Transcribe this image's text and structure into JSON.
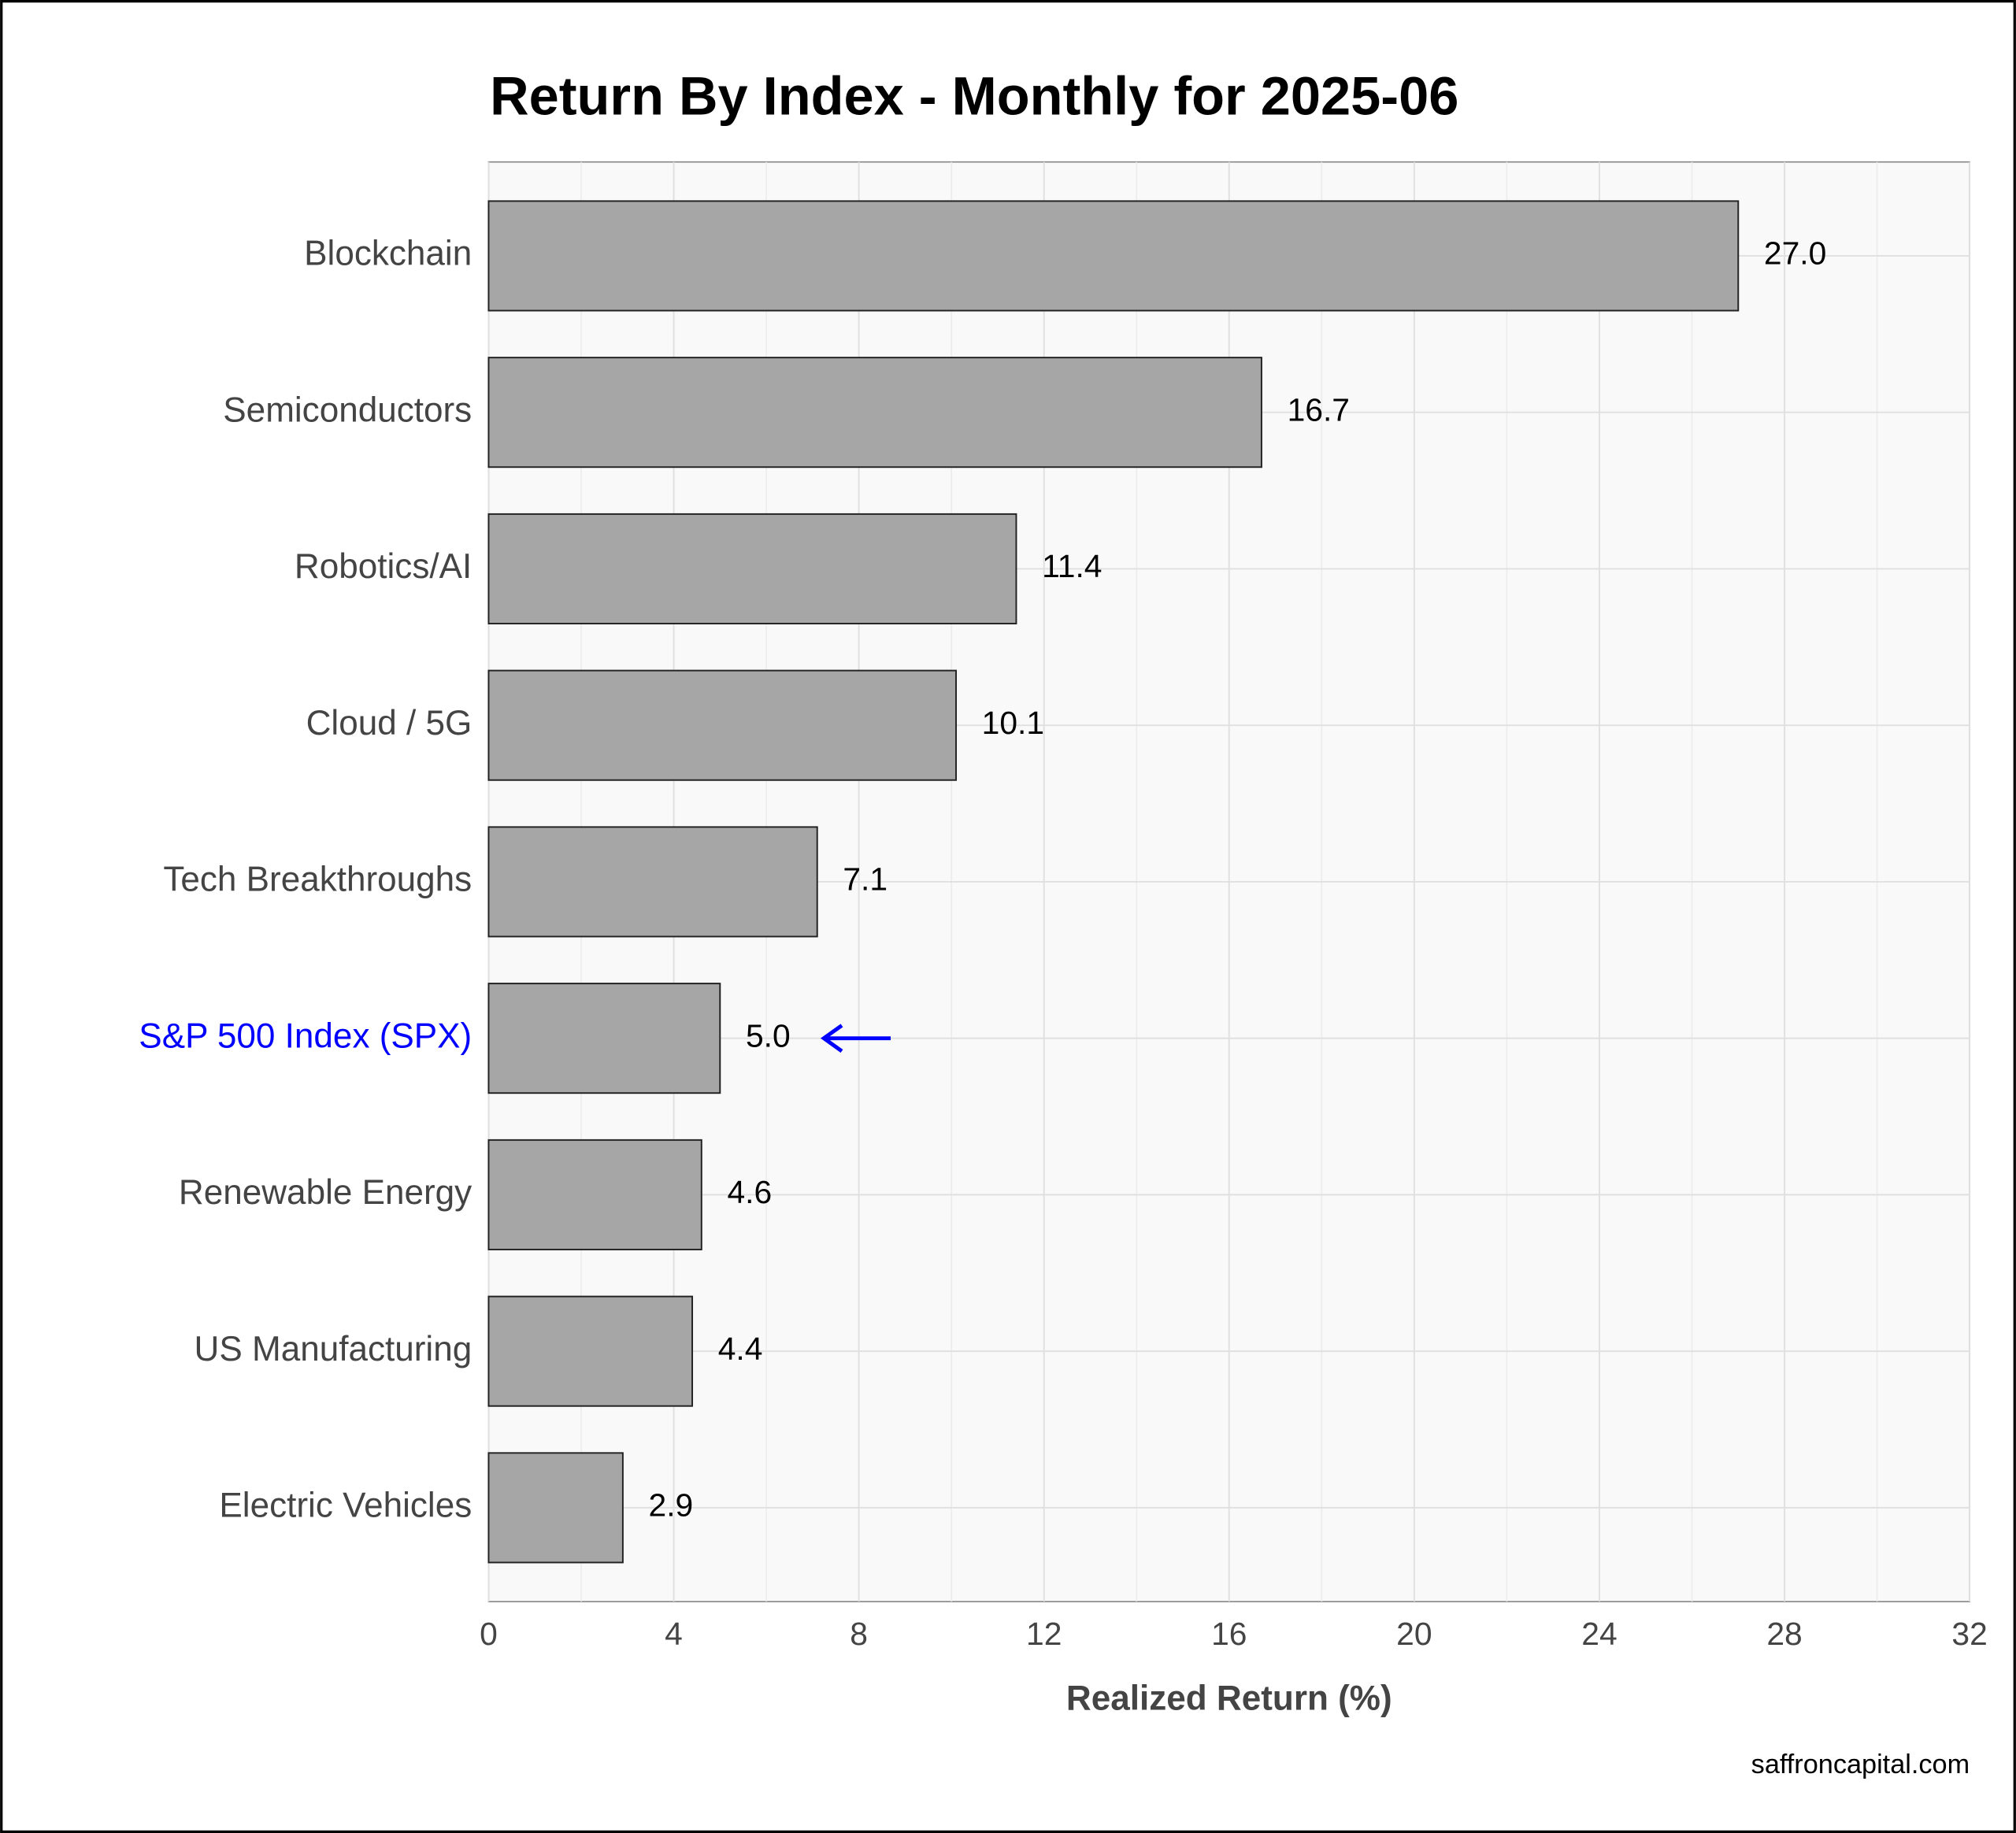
{
  "chart_data": {
    "type": "bar",
    "orientation": "horizontal",
    "title": "Return By Index - Monthly for 2025-06",
    "categories": [
      "Blockchain",
      "Semiconductors",
      "Robotics/AI",
      "Cloud / 5G",
      "Tech Breakthroughs",
      "S&P 500 Index (SPX)",
      "Renewable Energy",
      "US Manufacturing",
      "Electric Vehicles"
    ],
    "values": [
      27.0,
      16.7,
      11.4,
      10.1,
      7.1,
      5.0,
      4.6,
      4.4,
      2.9
    ],
    "value_labels": [
      "27.0",
      "16.7",
      "11.4",
      "10.1",
      "7.1",
      "5.0",
      "4.6",
      "4.4",
      "2.9"
    ],
    "color": "#a6a6a6",
    "highlight_category": "S&P 500 Index (SPX)",
    "highlight_color": "#0000ff",
    "xlabel": "Realized Return (%)",
    "xlim": [
      0,
      32
    ],
    "xticks": [
      0,
      4,
      8,
      12,
      16,
      20,
      24,
      28,
      32
    ],
    "grid": true,
    "caption": "saffroncapital.com"
  }
}
